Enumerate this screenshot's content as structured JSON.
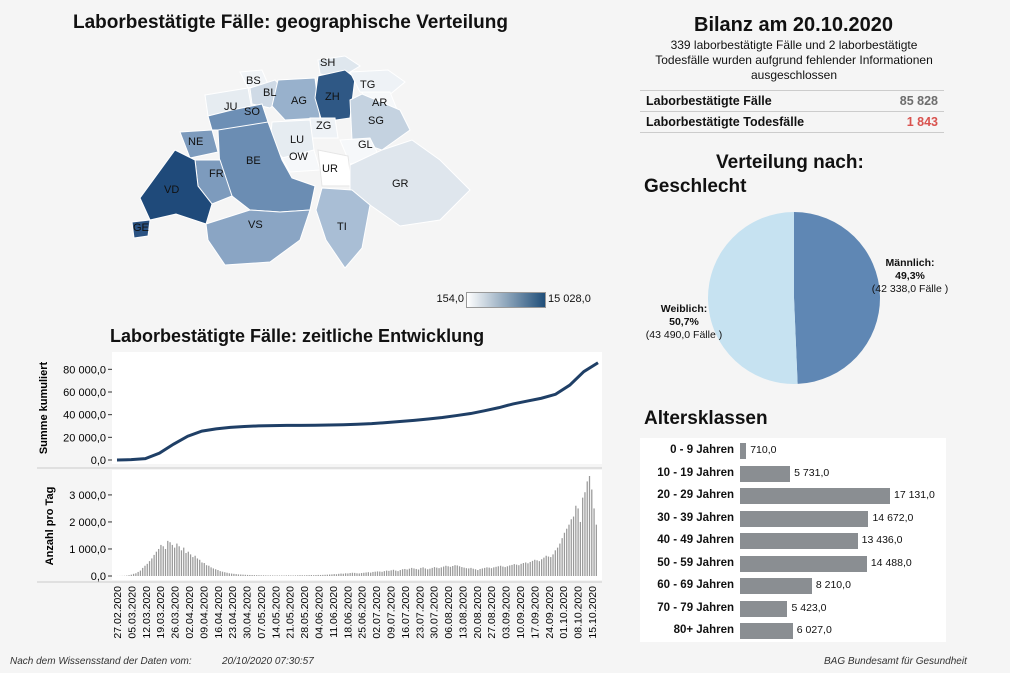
{
  "map": {
    "title": "Laborbestätigte Fälle: geographische Verteilung",
    "legend": {
      "min": "154,0",
      "max": "15 028,0",
      "color_min": "#ffffff",
      "color_max": "#1f4e79"
    },
    "cantons": [
      "SH",
      "BS",
      "BL",
      "TG",
      "ZH",
      "AR",
      "AG",
      "JU",
      "SO",
      "SG",
      "ZG",
      "LU",
      "NE",
      "GL",
      "BE",
      "OW",
      "FR",
      "UR",
      "VD",
      "GR",
      "VS",
      "TI",
      "GE"
    ]
  },
  "timeline": {
    "title": "Laborbestätigte Fälle: zeitliche Entwicklung",
    "ylabel_top": "Summe kumuliert",
    "ylabel_bottom": "Anzahl pro Tag",
    "dates": [
      "27.02.2020",
      "05.03.2020",
      "12.03.2020",
      "19.03.2020",
      "26.03.2020",
      "02.04.2020",
      "09.04.2020",
      "16.04.2020",
      "23.04.2020",
      "30.04.2020",
      "07.05.2020",
      "14.05.2020",
      "21.05.2020",
      "28.05.2020",
      "04.06.2020",
      "11.06.2020",
      "18.06.2020",
      "25.06.2020",
      "02.07.2020",
      "09.07.2020",
      "16.07.2020",
      "23.07.2020",
      "30.07.2020",
      "06.08.2020",
      "13.08.2020",
      "20.08.2020",
      "27.08.2020",
      "03.09.2020",
      "10.09.2020",
      "17.09.2020",
      "24.09.2020",
      "01.10.2020",
      "08.10.2020",
      "15.10.2020"
    ]
  },
  "chart_data": [
    {
      "type": "line",
      "title": "Laborbestätigte Fälle: zeitliche Entwicklung",
      "ylabel": "Summe kumuliert",
      "ylim": [
        0,
        90000
      ],
      "yticks": [
        "0,0",
        "20 000,0",
        "40 000,0",
        "60 000,0",
        "80 000,0"
      ],
      "ytick_values": [
        0,
        20000,
        40000,
        60000,
        80000
      ],
      "x": [
        "27.02.2020",
        "05.03.2020",
        "12.03.2020",
        "19.03.2020",
        "26.03.2020",
        "02.04.2020",
        "09.04.2020",
        "16.04.2020",
        "23.04.2020",
        "30.04.2020",
        "07.05.2020",
        "14.05.2020",
        "21.05.2020",
        "28.05.2020",
        "04.06.2020",
        "11.06.2020",
        "18.06.2020",
        "25.06.2020",
        "02.07.2020",
        "09.07.2020",
        "16.07.2020",
        "23.07.2020",
        "30.07.2020",
        "06.08.2020",
        "13.08.2020",
        "20.08.2020",
        "27.08.2020",
        "03.09.2020",
        "10.09.2020",
        "17.09.2020",
        "24.09.2020",
        "01.10.2020",
        "08.10.2020",
        "15.10.2020",
        "20.10.2020"
      ],
      "values": [
        10,
        300,
        1200,
        6000,
        14000,
        21000,
        25500,
        27500,
        28800,
        29600,
        30100,
        30300,
        30500,
        30600,
        30700,
        30900,
        31100,
        31500,
        32100,
        33000,
        34000,
        35000,
        36200,
        37500,
        39200,
        41000,
        43500,
        46200,
        49500,
        52000,
        54500,
        58000,
        66000,
        78000,
        85828
      ]
    },
    {
      "type": "bar",
      "title": "Laborbestätigte Fälle: zeitliche Entwicklung",
      "ylabel": "Anzahl pro Tag",
      "ylim": [
        0,
        3700
      ],
      "yticks": [
        "0,0",
        "1 000,0",
        "2 000,0",
        "3 000,0"
      ],
      "ytick_values": [
        0,
        1000,
        2000,
        3000
      ],
      "values": [
        2,
        3,
        5,
        8,
        15,
        30,
        50,
        80,
        100,
        150,
        200,
        300,
        380,
        450,
        550,
        650,
        780,
        900,
        1000,
        1150,
        1100,
        1000,
        1300,
        1250,
        1150,
        1050,
        1200,
        1100,
        950,
        1050,
        850,
        900,
        800,
        700,
        750,
        650,
        600,
        500,
        480,
        400,
        380,
        320,
        280,
        250,
        220,
        180,
        160,
        140,
        120,
        100,
        90,
        80,
        70,
        60,
        55,
        50,
        45,
        40,
        38,
        35,
        32,
        30,
        28,
        25,
        25,
        22,
        20,
        22,
        20,
        18,
        20,
        18,
        20,
        18,
        22,
        25,
        20,
        20,
        22,
        25,
        30,
        28,
        25,
        30,
        32,
        35,
        30,
        35,
        40,
        38,
        42,
        45,
        50,
        55,
        60,
        70,
        65,
        80,
        90,
        85,
        100,
        95,
        110,
        120,
        115,
        100,
        95,
        110,
        120,
        130,
        140,
        125,
        150,
        160,
        170,
        165,
        155,
        180,
        200,
        190,
        210,
        230,
        200,
        180,
        220,
        250,
        260,
        240,
        270,
        300,
        280,
        260,
        240,
        300,
        320,
        280,
        250,
        270,
        300,
        330,
        310,
        290,
        320,
        350,
        380,
        360,
        340,
        370,
        400,
        390,
        360,
        330,
        310,
        290,
        280,
        300,
        270,
        250,
        220,
        260,
        280,
        300,
        320,
        310,
        290,
        320,
        340,
        360,
        380,
        350,
        330,
        360,
        390,
        410,
        440,
        420,
        400,
        450,
        480,
        500,
        470,
        520,
        560,
        600,
        580,
        550,
        620,
        680,
        750,
        720,
        700,
        800,
        950,
        1050,
        1200,
        1400,
        1600,
        1750,
        1900,
        2100,
        2200,
        2600,
        2500,
        2000,
        2900,
        3100,
        3500,
        3700,
        3200,
        2500,
        1900
      ],
      "xlabel": ""
    },
    {
      "type": "pie",
      "title": "Verteilung nach: Geschlecht",
      "slices": [
        {
          "label": "Männlich:",
          "percent": "49,3%",
          "count": "(42 338,0 Fälle )",
          "value": 42338,
          "color": "#5f87b4"
        },
        {
          "label": "Weiblich:",
          "percent": "50,7%",
          "count": "(43 490,0 Fälle )",
          "value": 43490,
          "color": "#c6e2f1"
        }
      ]
    },
    {
      "type": "bar",
      "title": "Altersklassen",
      "orientation": "horizontal",
      "categories": [
        "0 - 9 Jahren",
        "10 - 19 Jahren",
        "20 - 29 Jahren",
        "30 - 39 Jahren",
        "40 - 49 Jahren",
        "50 - 59 Jahren",
        "60 - 69 Jahren",
        "70 - 79 Jahren",
        "80+ Jahren"
      ],
      "values": [
        710,
        5731,
        17131,
        14672,
        13436,
        14488,
        8210,
        5423,
        6027
      ],
      "value_labels": [
        "710,0",
        "5 731,0",
        "17 131,0",
        "14 672,0",
        "13 436,0",
        "14 488,0",
        "8 210,0",
        "5 423,0",
        "6 027,0"
      ],
      "color": "#8a8e92"
    }
  ],
  "bilanz": {
    "title": "Bilanz am 20.10.2020",
    "note": "339 laborbestätigte Fälle und 2 laborbestätigte Todesfälle wurden aufgrund fehlender Informationen ausgeschlossen",
    "rows": [
      {
        "label": "Laborbestätigte Fälle",
        "value": "85 828",
        "color": "#6d6d6d"
      },
      {
        "label": "Laborbestätigte Todesfälle",
        "value": "1 843",
        "color": "#d9534f"
      }
    ]
  },
  "verteilung": {
    "title1": "Verteilung nach:",
    "title2": "Geschlecht"
  },
  "alters": {
    "title": "Altersklassen"
  },
  "footer": {
    "left_label": "Nach dem Wissensstand der Daten vom:",
    "timestamp": "20/10/2020 07:30:57",
    "right": "BAG Bundesamt für Gesundheit"
  }
}
